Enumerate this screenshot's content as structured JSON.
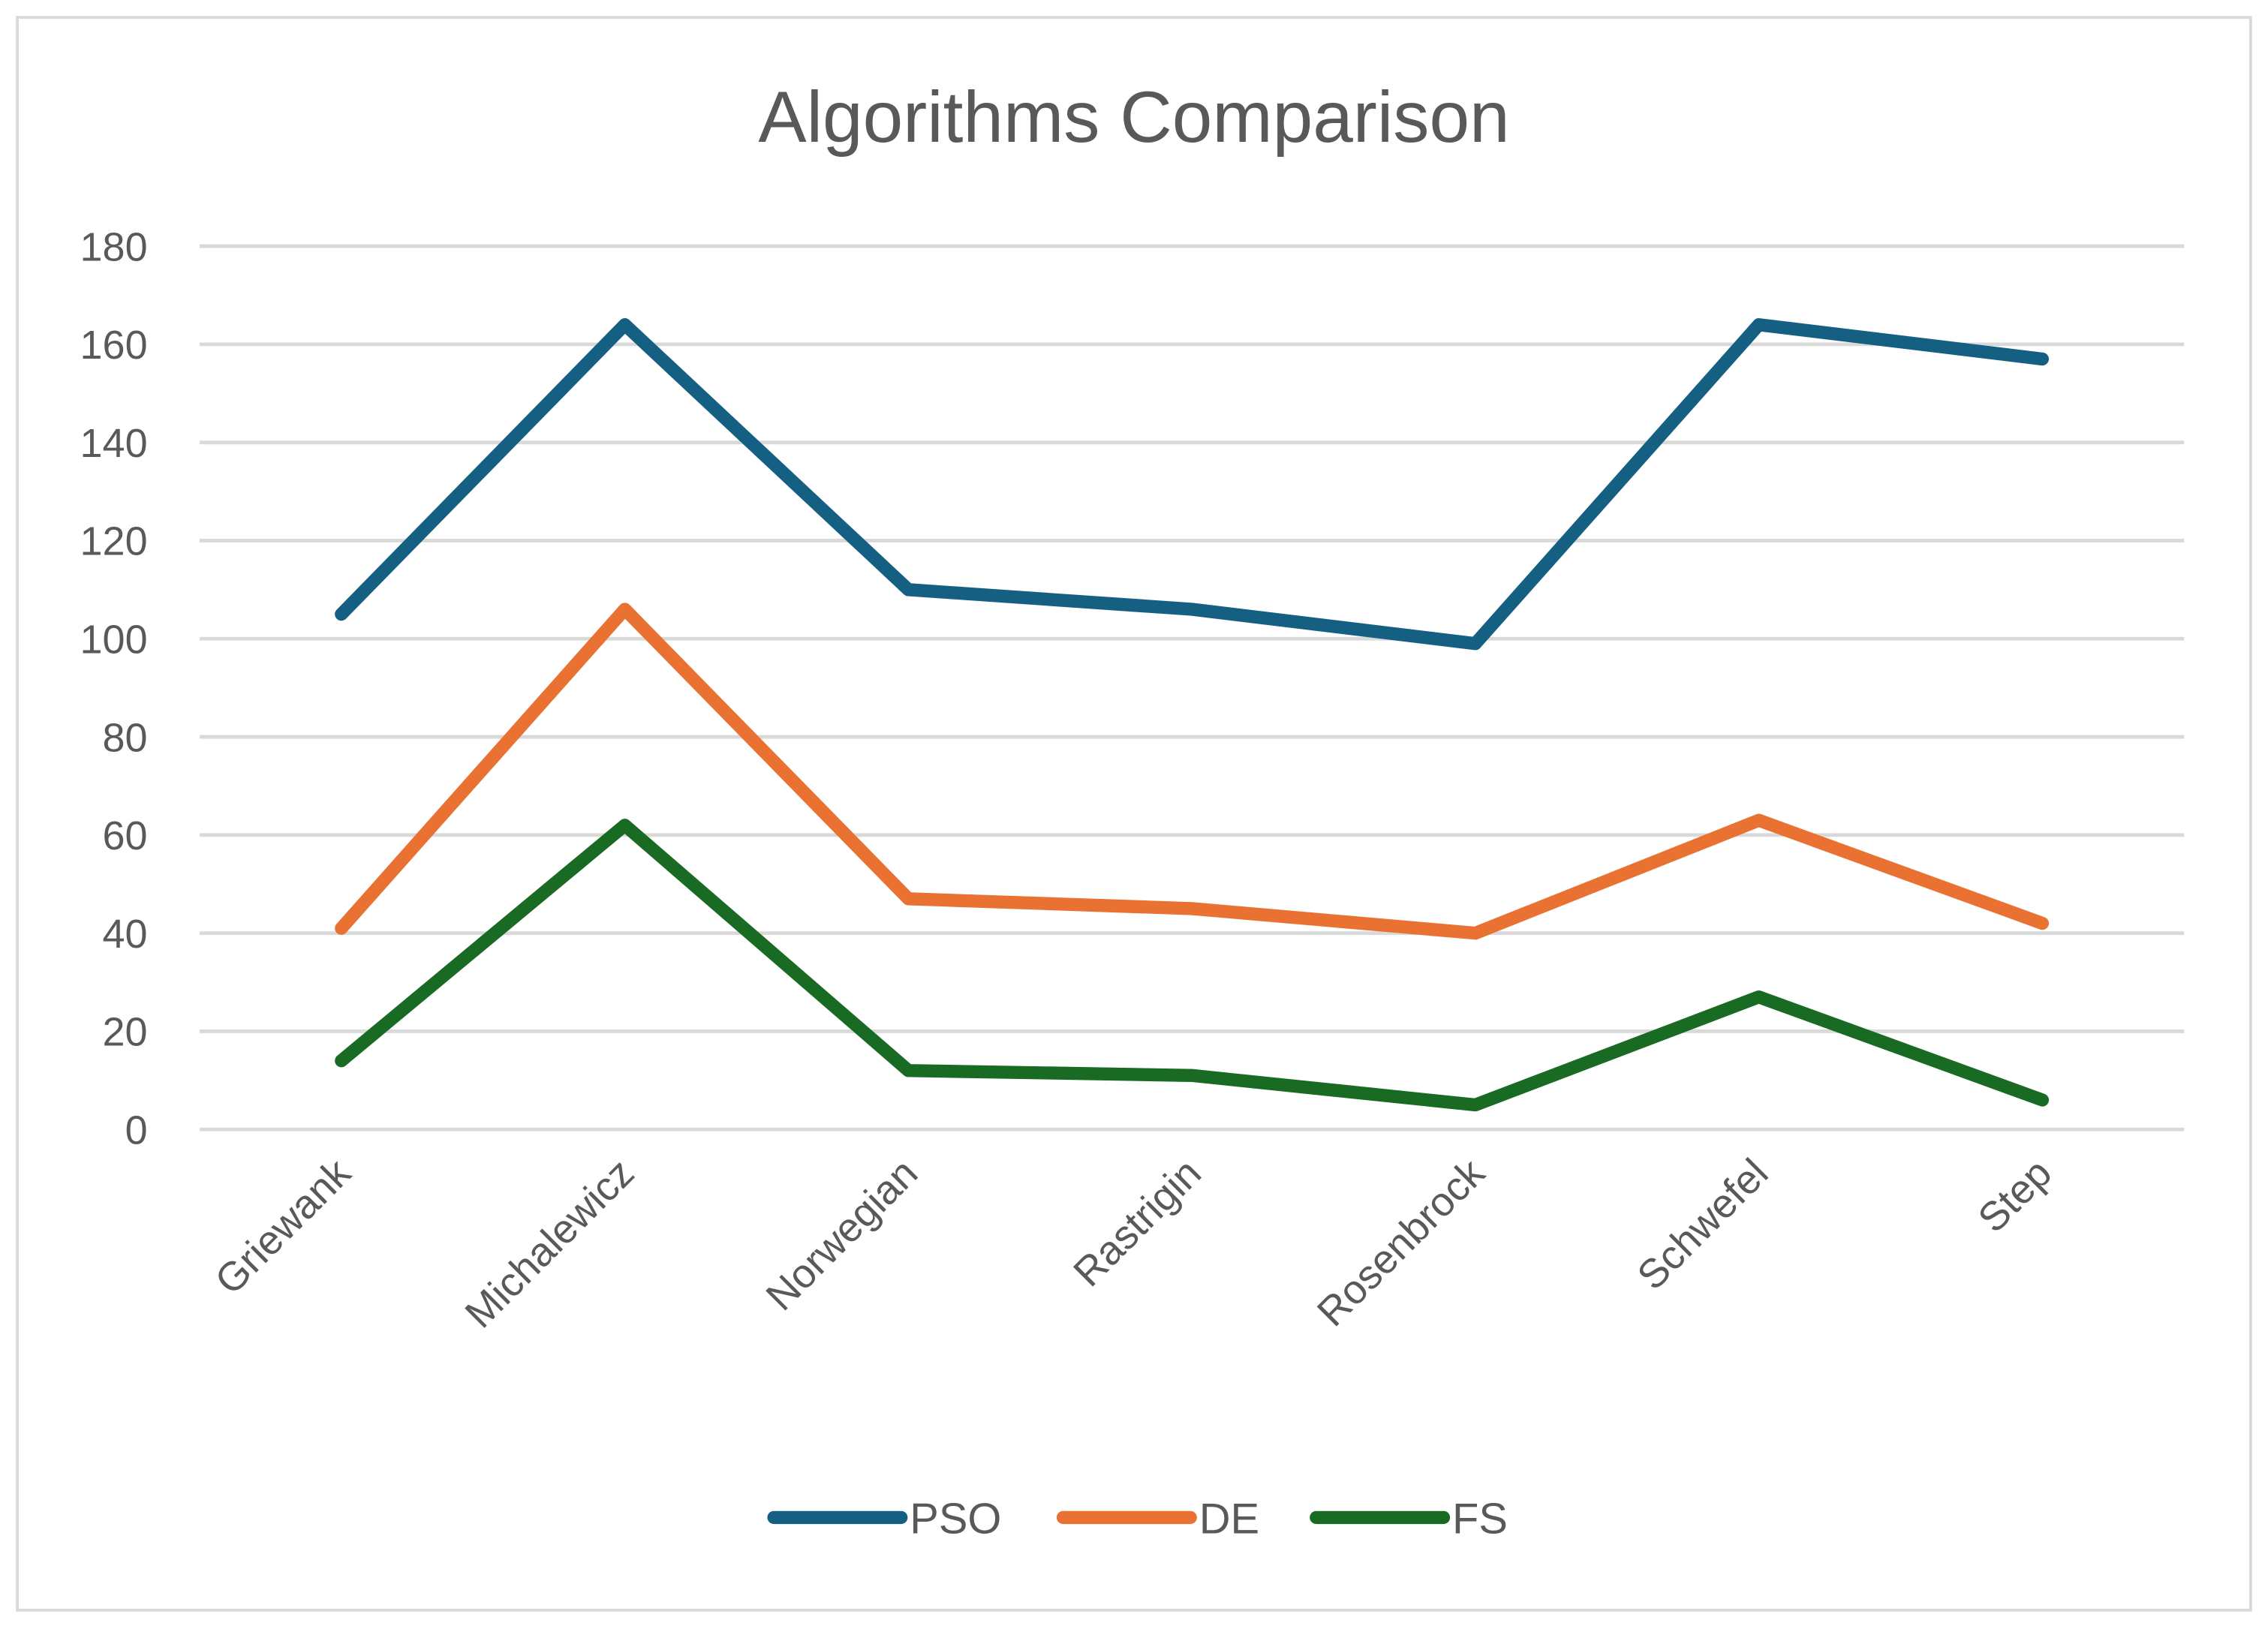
{
  "chart_data": {
    "type": "line",
    "title": "Algorithms Comparison",
    "xlabel": "",
    "ylabel": "",
    "categories": [
      "Griewank",
      "Michalewicz",
      "Norwegian",
      "Rastrigin",
      "Rosenbrock",
      "Schwefel",
      "Step"
    ],
    "ylim": [
      0,
      180
    ],
    "yticks": [
      0,
      20,
      40,
      60,
      80,
      100,
      120,
      140,
      160,
      180
    ],
    "grid": true,
    "legend_position": "bottom",
    "series": [
      {
        "name": "PSO",
        "color": "#156082",
        "values": [
          105,
          164,
          110,
          106,
          99,
          164,
          157
        ]
      },
      {
        "name": "DE",
        "color": "#E97132",
        "values": [
          41,
          106,
          47,
          45,
          40,
          63,
          42
        ]
      },
      {
        "name": "FS",
        "color": "#196B24",
        "values": [
          14,
          62,
          12,
          11,
          5,
          27,
          6
        ]
      }
    ]
  }
}
